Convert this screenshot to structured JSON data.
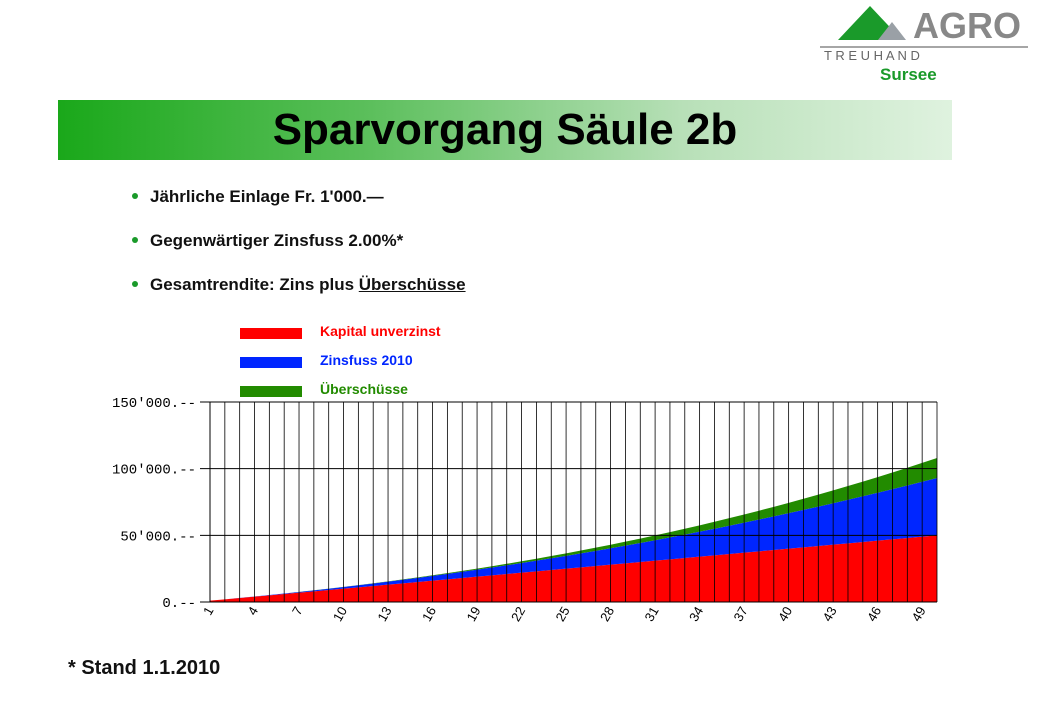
{
  "logo": {
    "brand": "AGRO",
    "sub": "T R E U H A N D",
    "location": "Sursee",
    "brand_color": "#1a9a2a"
  },
  "title": "Sparvorgang Säule 2b",
  "bullets": [
    {
      "text": "Jährliche Einlage Fr. 1'000.—"
    },
    {
      "text": "Gegenwärtiger Zinsfuss 2.00%*"
    },
    {
      "text_pre": "Gesamtrendite: Zins plus ",
      "text_underline": "Überschüsse"
    }
  ],
  "footnote": "* Stand 1.1.2010",
  "chart_data": {
    "type": "area",
    "stacked": true,
    "x": [
      1,
      2,
      3,
      4,
      5,
      6,
      7,
      8,
      9,
      10,
      11,
      12,
      13,
      14,
      15,
      16,
      17,
      18,
      19,
      20,
      21,
      22,
      23,
      24,
      25,
      26,
      27,
      28,
      29,
      30,
      31,
      32,
      33,
      34,
      35,
      36,
      37,
      38,
      39,
      40,
      41,
      42,
      43,
      44,
      45,
      46,
      47,
      48,
      49,
      50
    ],
    "x_tick_labels": [
      "1",
      "4",
      "7",
      "10",
      "13",
      "16",
      "19",
      "22",
      "25",
      "28",
      "31",
      "34",
      "37",
      "40",
      "43",
      "46",
      "49"
    ],
    "y_tick_labels": [
      "0.--",
      "50'000.--",
      "100'000.--",
      "150'000.--"
    ],
    "y_ticks": [
      0,
      50000,
      100000,
      150000
    ],
    "ylim": [
      0,
      150000
    ],
    "grid": "vertical",
    "legend_position": "top",
    "series": [
      {
        "name": "Kapital unverzinst",
        "color": "#ff0000",
        "start": 1000,
        "end": 50000
      },
      {
        "name": "Zinsfuss 2010",
        "color": "#0026ff",
        "start": 0,
        "end": 43000
      },
      {
        "name": "Überschüsse",
        "color": "#228b00",
        "start": 0,
        "end": 15000
      }
    ]
  }
}
